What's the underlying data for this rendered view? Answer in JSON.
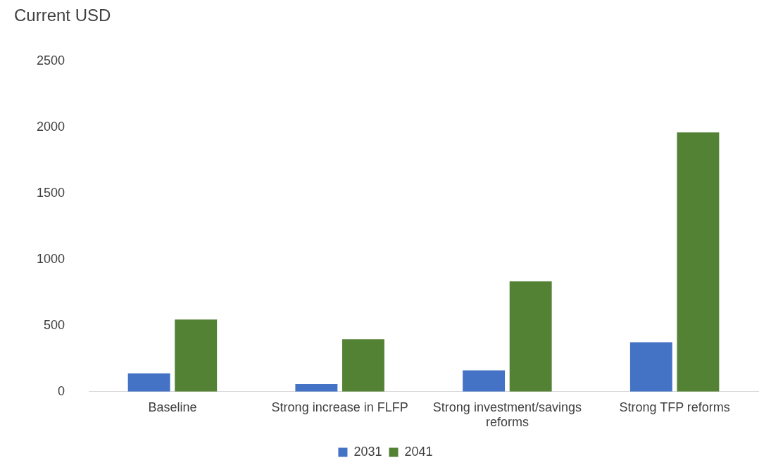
{
  "chart_data": {
    "type": "bar",
    "ylabel": "Current USD",
    "categories": [
      "Baseline",
      "Strong increase in FLFP",
      "Strong investment/savings reforms",
      "Strong TFP reforms"
    ],
    "series": [
      {
        "name": "2031",
        "color": "#4472c4",
        "values": [
          138,
          58,
          161,
          374
        ]
      },
      {
        "name": "2041",
        "color": "#548235",
        "values": [
          546,
          397,
          834,
          1961
        ]
      }
    ],
    "ylim": [
      0,
      2500
    ],
    "yticks": [
      0,
      500,
      1000,
      1500,
      2000,
      2500
    ],
    "grid": false,
    "legend": "bottom"
  }
}
